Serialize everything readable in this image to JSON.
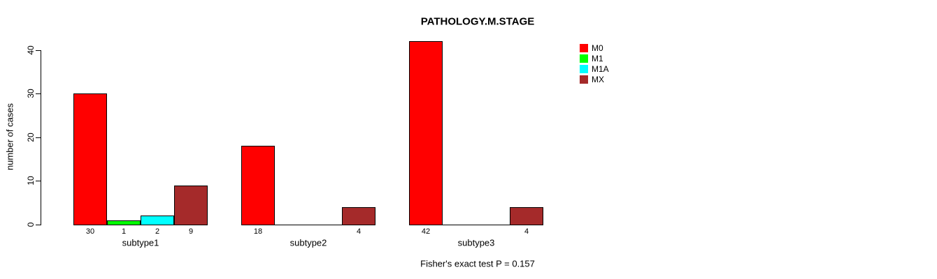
{
  "chart_data": {
    "type": "bar",
    "title": "PATHOLOGY.M.STAGE",
    "ylabel": "number of cases",
    "xlabel": "",
    "categories": [
      "subtype1",
      "subtype2",
      "subtype3"
    ],
    "series": [
      {
        "name": "M0",
        "color": "#FF0000",
        "values": [
          30,
          18,
          42
        ]
      },
      {
        "name": "M1",
        "color": "#00FF00",
        "values": [
          1,
          0,
          0
        ]
      },
      {
        "name": "M1A",
        "color": "#00FFFF",
        "values": [
          2,
          0,
          0
        ]
      },
      {
        "name": "MX",
        "color": "#A52A2A",
        "values": [
          9,
          4,
          4
        ]
      }
    ],
    "yticks": [
      0,
      10,
      20,
      30,
      40
    ],
    "ylim": [
      0,
      42
    ],
    "grid": false,
    "legend_position": "right",
    "legend_entries": [
      "M0",
      "M1",
      "M1A",
      "MX"
    ],
    "bar_value_labels": {
      "subtype1": [
        30,
        1,
        2,
        9
      ],
      "subtype2": [
        18,
        0,
        0,
        4
      ],
      "subtype3": [
        42,
        0,
        0,
        4
      ]
    },
    "annotation": "Fisher's exact test P = 0.157"
  }
}
